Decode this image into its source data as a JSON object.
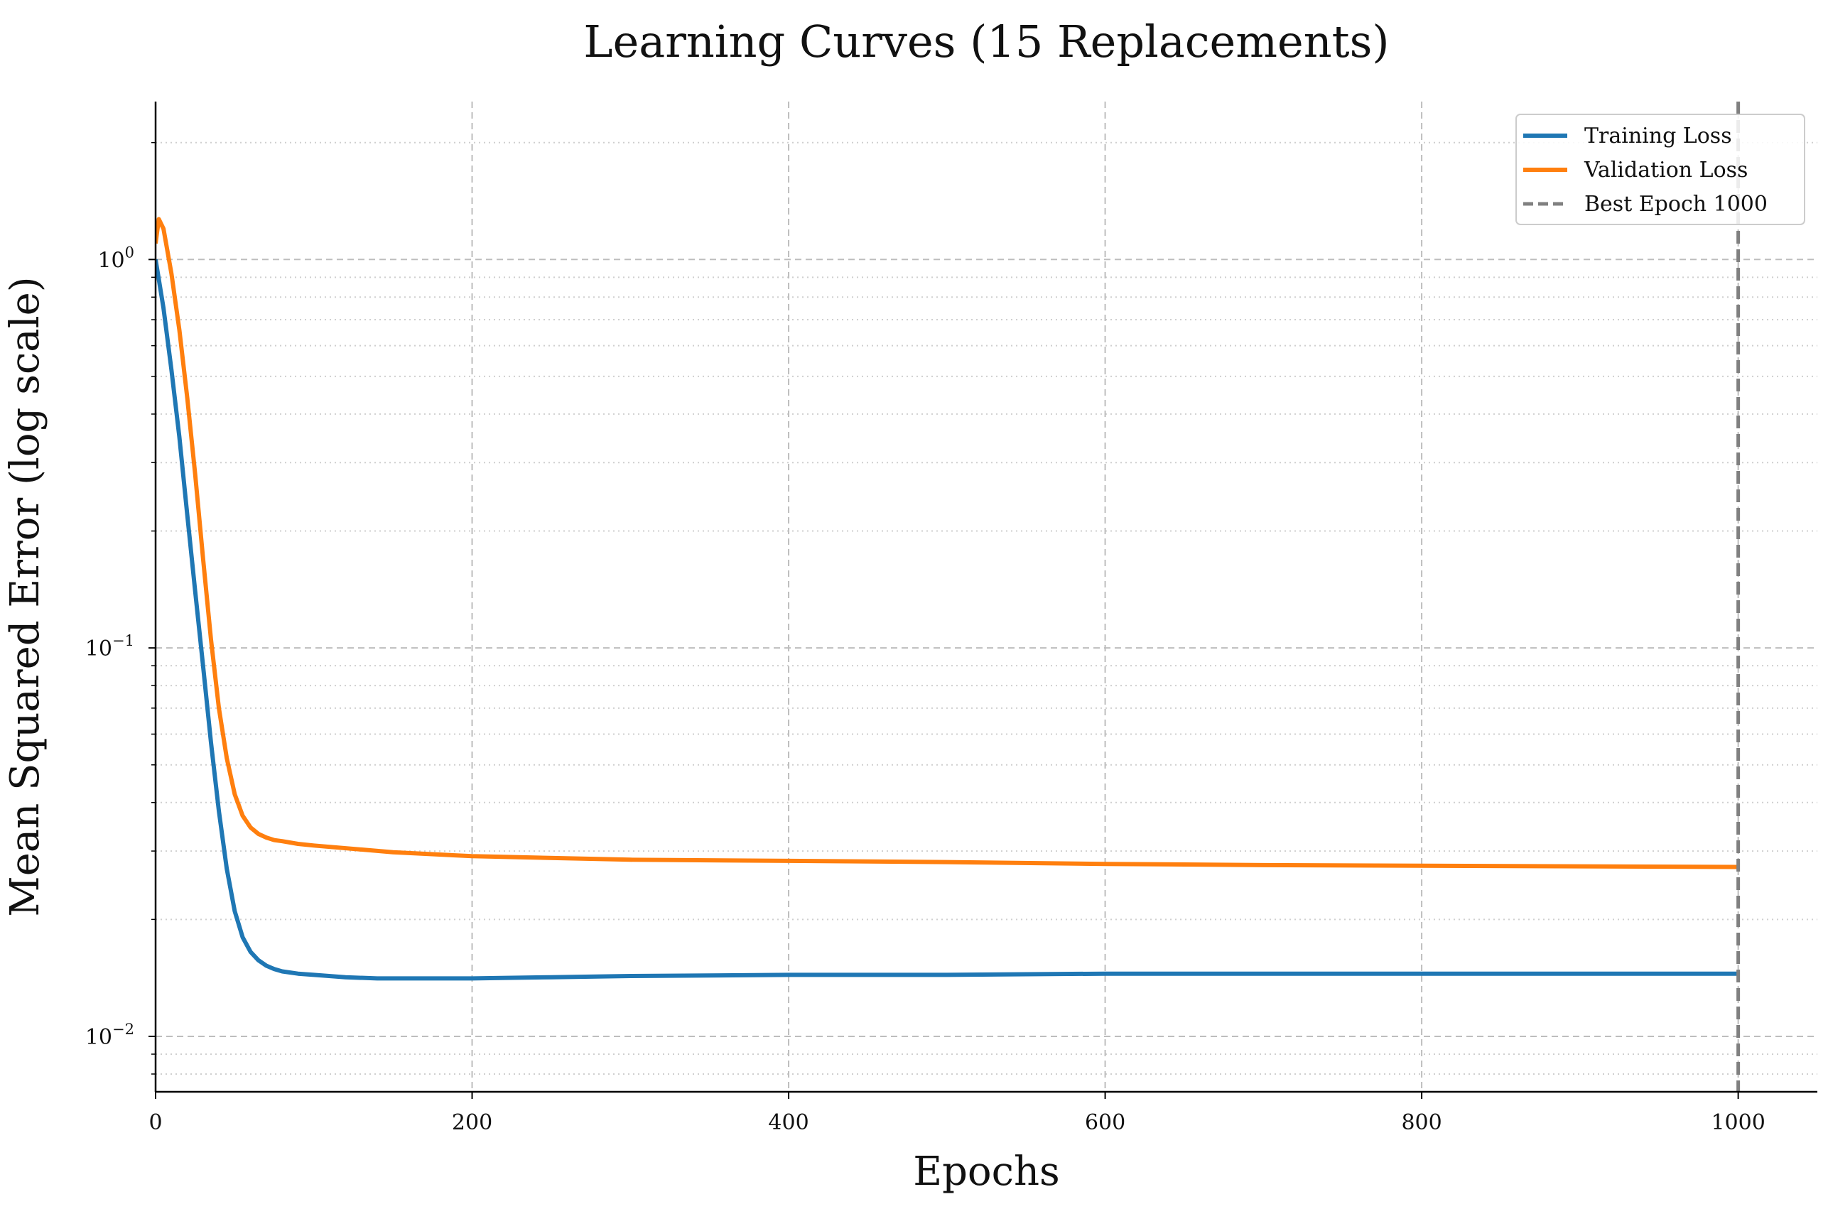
{
  "chart_data": {
    "type": "line",
    "title": "Learning Curves (15 Replacements)",
    "xlabel": "Epochs",
    "ylabel": "Mean Squared Error (log scale)",
    "xlim": [
      0,
      1050
    ],
    "ylim": [
      0.0072,
      2.55
    ],
    "yscale": "log",
    "grid": true,
    "legend_position": "top-right",
    "x_ticks": [
      0,
      200,
      400,
      600,
      800,
      1000
    ],
    "y_ticks": [
      {
        "value": 1,
        "base": "10",
        "exp": "0"
      },
      {
        "value": 0.1,
        "base": "10",
        "exp": "−1"
      },
      {
        "value": 0.01,
        "base": "10",
        "exp": "−2"
      }
    ],
    "series": [
      {
        "name": "Training Loss",
        "color": "#1f77b4",
        "x": [
          0,
          5,
          10,
          15,
          20,
          25,
          30,
          35,
          40,
          45,
          50,
          55,
          60,
          65,
          70,
          75,
          80,
          90,
          100,
          120,
          140,
          160,
          180,
          200,
          250,
          300,
          400,
          500,
          600,
          700,
          800,
          900,
          1000
        ],
        "y": [
          1.0,
          0.75,
          0.52,
          0.35,
          0.22,
          0.14,
          0.09,
          0.057,
          0.038,
          0.027,
          0.021,
          0.018,
          0.0165,
          0.0157,
          0.0152,
          0.0149,
          0.0147,
          0.0145,
          0.0144,
          0.0142,
          0.0141,
          0.0141,
          0.0141,
          0.0141,
          0.0142,
          0.0143,
          0.0144,
          0.0144,
          0.0145,
          0.0145,
          0.0145,
          0.0145,
          0.0145
        ]
      },
      {
        "name": "Validation Loss",
        "color": "#ff7f0e",
        "x": [
          0,
          2,
          5,
          10,
          15,
          20,
          25,
          30,
          35,
          40,
          45,
          50,
          55,
          60,
          65,
          70,
          75,
          80,
          90,
          100,
          150,
          200,
          300,
          400,
          500,
          600,
          700,
          800,
          900,
          1000
        ],
        "y": [
          1.1,
          1.27,
          1.2,
          0.92,
          0.66,
          0.44,
          0.28,
          0.17,
          0.105,
          0.07,
          0.052,
          0.042,
          0.037,
          0.0345,
          0.0332,
          0.0325,
          0.032,
          0.0318,
          0.0313,
          0.031,
          0.0298,
          0.0291,
          0.0285,
          0.0283,
          0.0281,
          0.0278,
          0.0276,
          0.0275,
          0.0274,
          0.0273
        ]
      }
    ],
    "reference_lines": [
      {
        "name": "Best Epoch 1000",
        "orientation": "vertical",
        "x": 1000,
        "color": "#808080",
        "style": "dashed"
      }
    ]
  }
}
